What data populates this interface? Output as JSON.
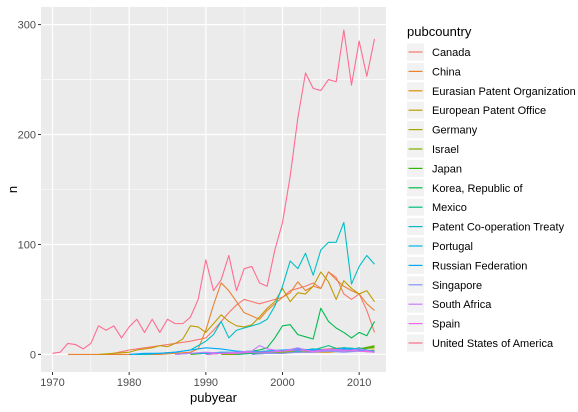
{
  "chart_data": {
    "type": "line",
    "xlabel": "pubyear",
    "ylabel": "n",
    "xlim": [
      1968.5,
      2013.5
    ],
    "ylim": [
      -16,
      316
    ],
    "x_ticks": [
      1970,
      1980,
      1990,
      2000,
      2010
    ],
    "x_tick_labels": [
      "1970",
      "1980",
      "1990",
      "2000",
      "2010"
    ],
    "y_ticks": [
      0,
      100,
      200,
      300
    ],
    "y_tick_labels": [
      "0",
      "100",
      "200",
      "300"
    ],
    "grid": true,
    "legend": {
      "title": "pubcountry",
      "placement": "right"
    },
    "series": [
      {
        "name": "Canada",
        "color": "#F8766D",
        "x": [
          1978,
          1980,
          1982,
          1984,
          1986,
          1988,
          1990,
          1991,
          1992,
          1993,
          1994,
          1995,
          1996,
          1997,
          1998,
          1999,
          2000,
          2001,
          2002,
          2003,
          2004,
          2005,
          2006,
          2007,
          2008,
          2009,
          2010,
          2011,
          2012
        ],
        "y": [
          1,
          4,
          6,
          8,
          10,
          12,
          15,
          22,
          30,
          38,
          45,
          50,
          48,
          46,
          48,
          50,
          52,
          58,
          60,
          62,
          65,
          60,
          75,
          70,
          55,
          50,
          55,
          40,
          20
        ]
      },
      {
        "name": "China",
        "color": "#EA8331",
        "x": [
          1972,
          1974,
          1976,
          1978,
          1980,
          1982,
          1984,
          1986,
          1988,
          1989,
          1990,
          1991,
          1992,
          1993,
          1994,
          1995,
          1996,
          1997,
          1998,
          1999,
          2000,
          2001,
          2002,
          2003,
          2004,
          2005,
          2006,
          2007,
          2008,
          2009,
          2010,
          2011,
          2012
        ],
        "y": [
          0,
          0,
          0,
          0,
          0,
          0,
          0,
          1,
          2,
          5,
          22,
          45,
          65,
          58,
          48,
          38,
          35,
          32,
          40,
          46,
          52,
          56,
          66,
          58,
          62,
          60,
          75,
          68,
          62,
          58,
          55,
          46,
          40
        ]
      },
      {
        "name": "Eurasian Patent Organization",
        "color": "#D89000",
        "x": [
          1996,
          1998,
          2000,
          2002,
          2004,
          2006,
          2008,
          2010,
          2012
        ],
        "y": [
          0,
          1,
          1,
          2,
          2,
          2,
          3,
          3,
          4
        ]
      },
      {
        "name": "European Patent Office",
        "color": "#C09B00",
        "x": [
          1976,
          1978,
          1980,
          1981,
          1982,
          1983,
          1984,
          1985,
          1986,
          1987,
          1988,
          1989,
          1990,
          1991,
          1992,
          1993,
          1994,
          1995,
          1996,
          1997,
          1998,
          1999,
          2000,
          2001,
          2002,
          2003,
          2004,
          2005,
          2006,
          2007,
          2008,
          2009,
          2010,
          2011,
          2012
        ],
        "y": [
          0,
          1,
          2,
          4,
          5,
          6,
          8,
          7,
          10,
          14,
          26,
          25,
          20,
          28,
          36,
          30,
          26,
          25,
          27,
          34,
          42,
          48,
          60,
          48,
          56,
          55,
          62,
          75,
          66,
          50,
          67,
          60,
          55,
          58,
          48
        ]
      },
      {
        "name": "Germany",
        "color": "#A3A500",
        "x": [
          1990,
          1992,
          1994,
          1996,
          1998,
          2000,
          2002,
          2004,
          2006,
          2008,
          2010,
          2012
        ],
        "y": [
          0,
          1,
          1,
          2,
          2,
          3,
          3,
          4,
          5,
          6,
          5,
          6
        ]
      },
      {
        "name": "Israel",
        "color": "#7CAE00",
        "x": [
          1992,
          1994,
          1996,
          1998,
          2000,
          2002,
          2004,
          2006,
          2008,
          2010,
          2012
        ],
        "y": [
          0,
          0,
          1,
          1,
          2,
          2,
          3,
          4,
          3,
          5,
          8
        ]
      },
      {
        "name": "Japan",
        "color": "#39B600",
        "x": [
          1988,
          1990,
          1992,
          1994,
          1996,
          1998,
          2000,
          2002,
          2004,
          2006,
          2008,
          2010,
          2012
        ],
        "y": [
          0,
          1,
          1,
          2,
          2,
          3,
          4,
          3,
          5,
          4,
          6,
          5,
          7
        ]
      },
      {
        "name": "Korea, Republic of",
        "color": "#00BB4E",
        "x": [
          1990,
          1992,
          1994,
          1996,
          1997,
          1998,
          1999,
          2000,
          2001,
          2002,
          2003,
          2004,
          2005,
          2006,
          2007,
          2008,
          2009,
          2010,
          2011,
          2012
        ],
        "y": [
          0,
          1,
          2,
          3,
          4,
          6,
          15,
          26,
          27,
          18,
          16,
          14,
          42,
          30,
          24,
          20,
          15,
          20,
          17,
          30
        ]
      },
      {
        "name": "Mexico",
        "color": "#00BF7D",
        "x": [
          1994,
          1996,
          1998,
          2000,
          2002,
          2004,
          2006,
          2008,
          2010,
          2012
        ],
        "y": [
          0,
          1,
          2,
          3,
          4,
          4,
          8,
          3,
          6,
          2
        ]
      },
      {
        "name": "Patent Co-operation Treaty",
        "color": "#00BFC4",
        "x": [
          1980,
          1982,
          1984,
          1986,
          1988,
          1989,
          1990,
          1991,
          1992,
          1993,
          1994,
          1995,
          1996,
          1997,
          1998,
          1999,
          2000,
          2001,
          2002,
          2003,
          2004,
          2005,
          2006,
          2007,
          2008,
          2009,
          2010,
          2011,
          2012
        ],
        "y": [
          0,
          0,
          1,
          2,
          4,
          8,
          12,
          18,
          30,
          15,
          22,
          24,
          26,
          28,
          32,
          44,
          62,
          85,
          78,
          92,
          72,
          95,
          102,
          102,
          120,
          64,
          80,
          90,
          82
        ]
      },
      {
        "name": "Portugal",
        "color": "#00B8E7",
        "x": [
          1986,
          1988,
          1990,
          1992,
          1994,
          1996,
          1998,
          2000,
          2002,
          2004,
          2006,
          2008,
          2010,
          2012
        ],
        "y": [
          0,
          1,
          1,
          2,
          2,
          3,
          2,
          4,
          3,
          5,
          4,
          6,
          5,
          3
        ]
      },
      {
        "name": "Russian Federation",
        "color": "#00A9FF",
        "x": [
          1980,
          1982,
          1984,
          1986,
          1988,
          1990,
          1992,
          1994,
          1996,
          1998,
          2000,
          2002,
          2004,
          2006,
          2008,
          2010,
          2012
        ],
        "y": [
          0,
          1,
          1,
          2,
          4,
          6,
          5,
          3,
          2,
          3,
          4,
          5,
          4,
          3,
          5,
          4,
          2
        ]
      },
      {
        "name": "Singapore",
        "color": "#8494FF",
        "x": [
          1996,
          1998,
          2000,
          2002,
          2004,
          2006,
          2008,
          2010,
          2012
        ],
        "y": [
          0,
          1,
          1,
          2,
          2,
          3,
          2,
          3,
          2
        ]
      },
      {
        "name": "South Africa",
        "color": "#C77CFF",
        "x": [
          1986,
          1988,
          1990,
          1992,
          1994,
          1996,
          1997,
          1998,
          2000,
          2002,
          2004,
          2006,
          2008,
          2010,
          2012
        ],
        "y": [
          0,
          1,
          2,
          1,
          2,
          3,
          8,
          5,
          3,
          6,
          2,
          4,
          3,
          5,
          2
        ]
      },
      {
        "name": "Spain",
        "color": "#ED68ED",
        "x": [
          1990,
          1992,
          1994,
          1996,
          1998,
          2000,
          2002,
          2004,
          2006,
          2008,
          2010,
          2012
        ],
        "y": [
          0,
          1,
          1,
          2,
          2,
          3,
          4,
          3,
          5,
          4,
          3,
          2
        ]
      },
      {
        "name": "United States of America",
        "color": "#FF6C91",
        "x": [
          1970,
          1971,
          1972,
          1973,
          1974,
          1975,
          1976,
          1977,
          1978,
          1979,
          1980,
          1981,
          1982,
          1983,
          1984,
          1985,
          1986,
          1987,
          1988,
          1989,
          1990,
          1991,
          1992,
          1993,
          1994,
          1995,
          1996,
          1997,
          1998,
          1999,
          2000,
          2001,
          2002,
          2003,
          2004,
          2005,
          2006,
          2007,
          2008,
          2009,
          2010,
          2011,
          2012
        ],
        "y": [
          1,
          2,
          10,
          9,
          5,
          10,
          26,
          22,
          26,
          15,
          25,
          32,
          20,
          32,
          20,
          32,
          28,
          28,
          34,
          50,
          86,
          58,
          68,
          90,
          58,
          78,
          80,
          65,
          62,
          95,
          120,
          162,
          215,
          256,
          242,
          240,
          250,
          248,
          295,
          245,
          285,
          253,
          287
        ]
      }
    ]
  }
}
